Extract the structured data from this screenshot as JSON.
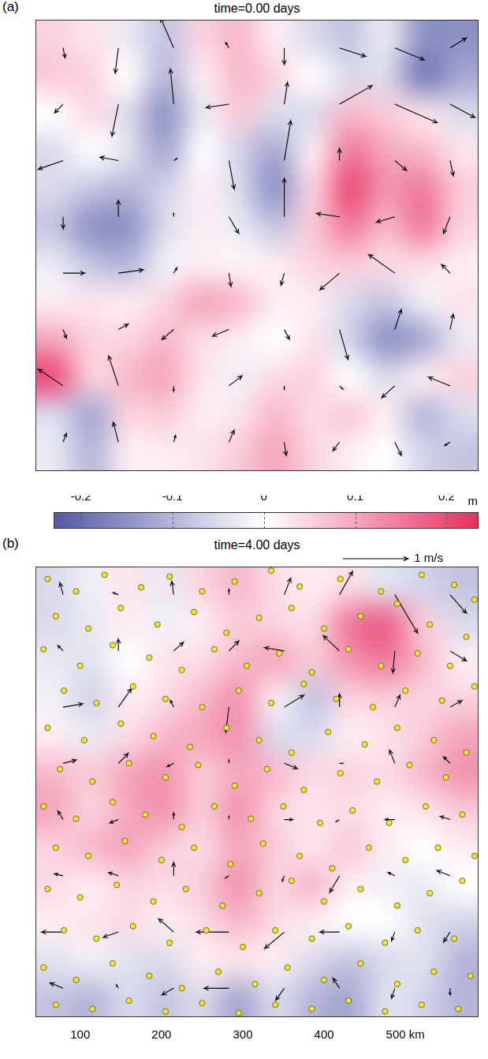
{
  "chart_data": [
    {
      "type": "heatmap",
      "panel": "(a)",
      "title": "time=0.00  days",
      "xlim": [
        45,
        590
      ],
      "ylim": [
        45,
        590
      ],
      "tick_labels": false,
      "x": [
        68,
        113,
        159,
        204,
        249,
        295,
        340,
        386,
        431,
        476,
        522,
        567
      ],
      "y": [
        567,
        522,
        476,
        431,
        386,
        340,
        295,
        249,
        204,
        159,
        113,
        68
      ],
      "ssh": [
        [
          0.05,
          0.03,
          -0.03,
          -0.08,
          0.05,
          0.08,
          0.02,
          -0.05,
          -0.08,
          -0.03,
          -0.15,
          -0.15
        ],
        [
          0.06,
          0.05,
          0,
          -0.1,
          0.02,
          0.08,
          0.05,
          0,
          -0.05,
          -0.05,
          -0.18,
          -0.12
        ],
        [
          0,
          0.04,
          -0.05,
          -0.15,
          -0.03,
          0.06,
          -0.05,
          -0.05,
          0.08,
          0.06,
          0.03,
          -0.05
        ],
        [
          -0.05,
          0,
          -0.04,
          -0.12,
          0,
          -0.06,
          -0.12,
          0.02,
          0.15,
          0.1,
          0.08,
          0.03
        ],
        [
          -0.05,
          -0.08,
          -0.1,
          -0.06,
          0.02,
          -0.05,
          -0.15,
          0.05,
          0.2,
          0.12,
          0.15,
          0.06
        ],
        [
          -0.08,
          -0.15,
          -0.15,
          -0.05,
          0.02,
          -0.03,
          -0.08,
          0.06,
          0.15,
          0.08,
          0.15,
          0.05
        ],
        [
          -0.03,
          -0.08,
          -0.1,
          -0.02,
          0.02,
          0.01,
          0.02,
          0.05,
          0.06,
          0.04,
          0.04,
          0.02
        ],
        [
          0.02,
          0.03,
          0.02,
          0.05,
          0.1,
          0.08,
          0.02,
          0.02,
          -0.05,
          -0.08,
          -0.02,
          0.03
        ],
        [
          0.1,
          0.05,
          0.05,
          0.08,
          0.04,
          0.02,
          0,
          0.03,
          -0.06,
          -0.15,
          -0.12,
          -0.03
        ],
        [
          0.2,
          0.05,
          0.08,
          0.1,
          0.03,
          -0.02,
          0.04,
          0.05,
          0,
          -0.05,
          0.02,
          0.05
        ],
        [
          -0.05,
          -0.12,
          0.05,
          0.06,
          0.02,
          0.03,
          0.08,
          0.04,
          0.06,
          0.02,
          -0.1,
          -0.05
        ],
        [
          -0.03,
          -0.1,
          0.02,
          0.02,
          0.03,
          0.06,
          0.1,
          0.05,
          0.02,
          0,
          -0.06,
          -0.08
        ]
      ],
      "velocity": {
        "x": [
          79,
          147,
          215,
          283,
          351,
          419,
          487,
          555
        ],
        "y": [
          556,
          488,
          420,
          352,
          284,
          216,
          148,
          80
        ],
        "u": [
          [
            0.03,
            -0.05,
            -0.2,
            -0.05,
            0,
            0.4,
            0.45,
            0.25
          ],
          [
            -0.13,
            -0.1,
            -0.05,
            -0.35,
            0.05,
            0.5,
            0.65,
            0.38
          ],
          [
            -0.38,
            -0.28,
            0.05,
            0.08,
            0.1,
            0,
            0.18,
            0.05
          ],
          [
            0,
            0,
            0,
            0.15,
            0,
            -0.35,
            -0.28,
            -0.1
          ],
          [
            0.33,
            0.38,
            0.05,
            0.03,
            -0.05,
            -0.3,
            -0.4,
            -0.13
          ],
          [
            0.05,
            0.15,
            -0.18,
            -0.25,
            0.08,
            0.13,
            0.1,
            0.05
          ],
          [
            -0.38,
            -0.15,
            0,
            0.2,
            0,
            0.05,
            -0.2,
            -0.33
          ],
          [
            0.05,
            -0.08,
            0.03,
            0.08,
            0.03,
            -0.1,
            0.1,
            -0.08
          ]
        ],
        "v": [
          [
            -0.15,
            -0.38,
            0.45,
            0.08,
            -0.25,
            -0.13,
            -0.18,
            0.15
          ],
          [
            -0.13,
            -0.48,
            0.53,
            -0.05,
            0.33,
            0.28,
            -0.28,
            -0.2
          ],
          [
            -0.13,
            0.05,
            0.03,
            -0.43,
            0.6,
            0.18,
            -0.15,
            -0.23
          ],
          [
            -0.18,
            0.25,
            0.05,
            -0.25,
            0.58,
            0.05,
            -0.08,
            -0.25
          ],
          [
            0,
            0.05,
            0.08,
            -0.2,
            -0.18,
            -0.25,
            0.28,
            0.13
          ],
          [
            -0.13,
            0.08,
            -0.15,
            -0.1,
            -0.15,
            -0.45,
            0.3,
            0.23
          ],
          [
            0.25,
            0.45,
            -0.08,
            0.15,
            -0.05,
            -0.05,
            -0.18,
            0.13
          ],
          [
            0.13,
            0.3,
            0.1,
            0.18,
            -0.2,
            -0.13,
            -0.2,
            -0.05
          ]
        ]
      },
      "colorbar": {
        "range": [
          -0.23,
          0.235
        ],
        "ticks": [
          -0.2,
          -0.1,
          0,
          0.1,
          0.2
        ],
        "label": "m"
      }
    },
    {
      "type": "heatmap",
      "panel": "(b)",
      "title": "time=4.00  days",
      "xlim": [
        45,
        590
      ],
      "ylim": [
        45,
        590
      ],
      "tick_labels": "x",
      "xticks": [
        100,
        200,
        300,
        400,
        {
          "value": 500,
          "label": "500 km"
        }
      ],
      "x": [
        68,
        113,
        159,
        204,
        249,
        295,
        340,
        386,
        431,
        476,
        522,
        567
      ],
      "y": [
        567,
        522,
        476,
        431,
        386,
        340,
        295,
        249,
        204,
        159,
        113,
        68
      ],
      "ssh": [
        [
          -0.05,
          -0.02,
          0.03,
          -0.03,
          0.05,
          0.08,
          0.04,
          0.02,
          0.04,
          -0.04,
          -0.06,
          -0.08
        ],
        [
          -0.05,
          -0.03,
          0.02,
          -0.02,
          0.02,
          0.06,
          0.05,
          0.04,
          0.15,
          0.18,
          0.06,
          -0.05
        ],
        [
          -0.03,
          -0.04,
          0,
          0.03,
          0.04,
          0.08,
          0.1,
          0.06,
          0.12,
          0.15,
          0.08,
          0.02
        ],
        [
          -0.02,
          -0.06,
          0.02,
          0.04,
          0.08,
          0.12,
          0.02,
          -0.08,
          0.05,
          0.06,
          0.05,
          0.05
        ],
        [
          0.02,
          -0.03,
          0.04,
          0.08,
          0.1,
          0.12,
          -0.05,
          -0.05,
          0.02,
          0.03,
          0.06,
          0.1
        ],
        [
          0.08,
          0.06,
          0.1,
          0.12,
          0.06,
          0.1,
          0.08,
          0.04,
          0.05,
          0.04,
          0.08,
          0.12
        ],
        [
          0.1,
          0.05,
          0.1,
          0.12,
          0.06,
          0.12,
          0.05,
          0.03,
          0.04,
          0.02,
          0.03,
          0.06
        ],
        [
          0.05,
          0.08,
          0.1,
          0.06,
          0.04,
          0.1,
          0.06,
          0.03,
          0.06,
          0.02,
          0,
          0.02
        ],
        [
          0.04,
          0.02,
          0.05,
          0.04,
          0.06,
          0.12,
          0.05,
          0.08,
          0.02,
          -0.02,
          -0.03,
          0
        ],
        [
          0.02,
          0.03,
          0.04,
          0.02,
          0.04,
          0.08,
          0.04,
          0.02,
          0,
          0,
          -0.04,
          -0.06
        ],
        [
          -0.04,
          -0.02,
          -0.04,
          -0.05,
          0.02,
          0.03,
          0.02,
          -0.05,
          -0.08,
          -0.05,
          -0.04,
          -0.1
        ],
        [
          -0.08,
          -0.1,
          -0.05,
          -0.08,
          -0.05,
          -0.12,
          -0.05,
          -0.1,
          -0.12,
          -0.04,
          -0.06,
          -0.1
        ]
      ],
      "velocity": {
        "x": [
          79,
          147,
          215,
          283,
          351,
          419,
          487,
          555
        ],
        "y": [
          556,
          488,
          420,
          352,
          284,
          216,
          148,
          80
        ],
        "u": [
          [
            -0.05,
            -0.08,
            -0.03,
            0,
            0.1,
            0.2,
            0.35,
            0.25
          ],
          [
            -0.08,
            0,
            0.15,
            0.15,
            -0.3,
            -0.25,
            -0.03,
            0.25
          ],
          [
            0.3,
            0.2,
            -0.05,
            -0.05,
            0.3,
            0,
            0.08,
            0.18
          ],
          [
            0.2,
            0.15,
            -0.1,
            0,
            0.2,
            0.05,
            -0.08,
            -0.1
          ],
          [
            -0.08,
            -0.13,
            0,
            0,
            0.13,
            -0.05,
            -0.15,
            -0.15
          ],
          [
            -0.13,
            -0.15,
            0,
            -0.05,
            -0.03,
            -0.15,
            -0.1,
            -0.2
          ],
          [
            -0.33,
            -0.23,
            -0.23,
            -0.5,
            -0.3,
            -0.3,
            -0.05,
            -0.1
          ],
          [
            -0.2,
            -0.03,
            -0.18,
            -0.38,
            -0.13,
            -0.1,
            -0.05,
            0
          ]
        ],
        "v": [
          [
            0.18,
            0.03,
            0.2,
            0.08,
            0.25,
            0.35,
            -0.58,
            -0.28
          ],
          [
            0.08,
            0.18,
            0.13,
            0.15,
            0.05,
            0.23,
            -0.33,
            -0.15
          ],
          [
            0.05,
            0.28,
            0.1,
            -0.38,
            0.18,
            0.2,
            0.18,
            0.1
          ],
          [
            0.05,
            0.15,
            -0.05,
            0.05,
            -0.08,
            0,
            0.2,
            0.1
          ],
          [
            0.13,
            -0.05,
            0.1,
            0.05,
            0,
            -0.03,
            0,
            0.05
          ],
          [
            0.03,
            0.05,
            0.2,
            -0.03,
            -0.08,
            -0.25,
            0.05,
            0.08
          ],
          [
            0,
            -0.08,
            0.2,
            0,
            -0.25,
            0,
            -0.13,
            -0.15
          ],
          [
            0.08,
            0.05,
            -0.1,
            0,
            -0.18,
            0.15,
            -0.15,
            -0.1
          ]
        ]
      },
      "velocity_key": {
        "value": 1,
        "label": "1 m/s"
      },
      "drifters": {
        "color": "#f2e53a",
        "marker": "circle",
        "x": [
          60,
          95,
          130,
          175,
          210,
          250,
          290,
          335,
          370,
          420,
          470,
          520,
          560,
          585,
          70,
          110,
          150,
          195,
          240,
          280,
          320,
          360,
          400,
          445,
          490,
          530,
          575,
          55,
          100,
          140,
          185,
          225,
          265,
          305,
          345,
          385,
          430,
          470,
          515,
          555,
          80,
          120,
          165,
          205,
          250,
          295,
          335,
          375,
          415,
          460,
          500,
          545,
          585,
          60,
          105,
          150,
          190,
          235,
          280,
          320,
          360,
          405,
          450,
          490,
          535,
          575,
          75,
          115,
          160,
          205,
          245,
          290,
          330,
          375,
          420,
          465,
          505,
          550,
          55,
          95,
          140,
          180,
          225,
          265,
          310,
          350,
          395,
          435,
          480,
          525,
          570,
          70,
          110,
          155,
          200,
          240,
          285,
          325,
          370,
          410,
          455,
          500,
          540,
          585,
          60,
          100,
          145,
          190,
          230,
          275,
          320,
          360,
          400,
          445,
          490,
          530,
          570,
          80,
          120,
          165,
          210,
          255,
          300,
          340,
          385,
          430,
          475,
          515,
          560,
          55,
          95,
          140,
          185,
          225,
          270,
          315,
          355,
          400,
          445,
          490,
          535,
          580,
          70,
          115,
          160,
          205,
          250,
          295,
          340,
          385,
          430,
          475,
          520,
          565
        ],
        "y": [
          575,
          560,
          580,
          565,
          578,
          560,
          572,
          585,
          566,
          575,
          560,
          580,
          568,
          550,
          530,
          515,
          540,
          520,
          535,
          510,
          528,
          540,
          515,
          530,
          545,
          520,
          505,
          490,
          470,
          495,
          480,
          465,
          490,
          470,
          485,
          462,
          490,
          470,
          485,
          470,
          440,
          425,
          445,
          430,
          420,
          440,
          425,
          448,
          430,
          420,
          440,
          428,
          445,
          395,
          380,
          400,
          385,
          372,
          395,
          380,
          365,
          390,
          375,
          395,
          380,
          365,
          345,
          330,
          352,
          335,
          350,
          325,
          345,
          320,
          340,
          330,
          350,
          335,
          300,
          285,
          305,
          290,
          275,
          300,
          285,
          300,
          280,
          295,
          280,
          300,
          290,
          250,
          240,
          258,
          235,
          250,
          230,
          255,
          240,
          225,
          250,
          235,
          250,
          240,
          200,
          190,
          205,
          185,
          200,
          180,
          195,
          210,
          185,
          200,
          180,
          195,
          210,
          150,
          140,
          155,
          135,
          150,
          130,
          150,
          140,
          155,
          135,
          150,
          140,
          105,
          90,
          110,
          95,
          80,
          100,
          85,
          105,
          90,
          110,
          85,
          100,
          95,
          60,
          55,
          65,
          52,
          62,
          50,
          60,
          55,
          65,
          52,
          60,
          55
        ]
      }
    }
  ]
}
